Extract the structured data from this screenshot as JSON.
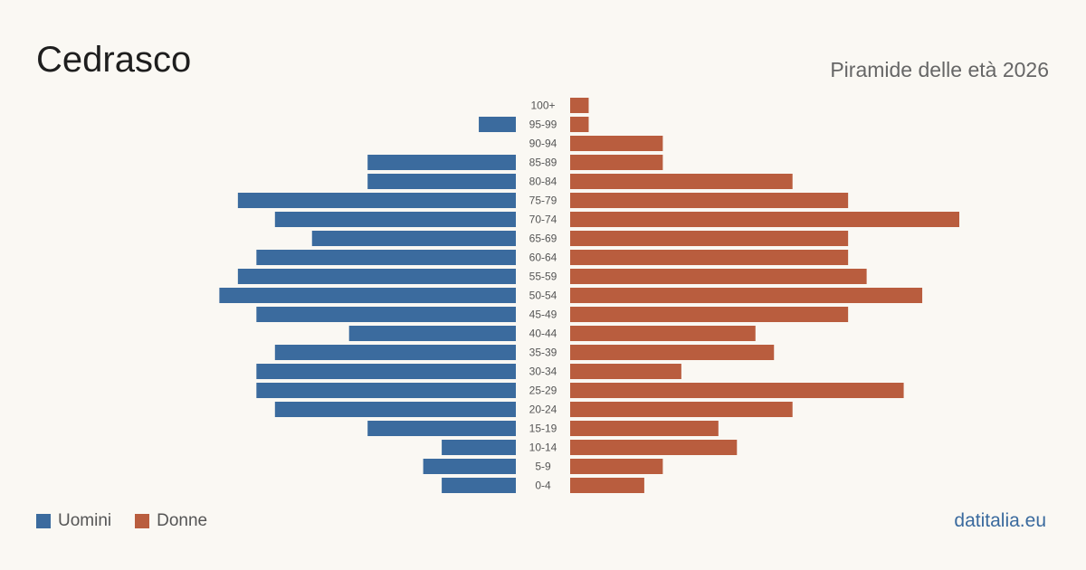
{
  "header": {
    "title": "Cedrasco",
    "subtitle": "Piramide delle età 2026"
  },
  "footer": {
    "source": "datitalia.eu"
  },
  "colors": {
    "men": "#3b6b9e",
    "women": "#b95d3e",
    "age_label": "#555555"
  },
  "chart_data": {
    "type": "bar",
    "orientation": "horizontal-pyramid",
    "categories": [
      "100+",
      "95-99",
      "90-94",
      "85-89",
      "80-84",
      "75-79",
      "70-74",
      "65-69",
      "60-64",
      "55-59",
      "50-54",
      "45-49",
      "40-44",
      "35-39",
      "30-34",
      "25-29",
      "20-24",
      "15-19",
      "10-14",
      "5-9",
      "0-4"
    ],
    "series": [
      {
        "name": "Uomini",
        "values": [
          0,
          2,
          0,
          8,
          8,
          15,
          13,
          11,
          14,
          15,
          16,
          14,
          9,
          13,
          14,
          14,
          13,
          8,
          4,
          5,
          4
        ]
      },
      {
        "name": "Donne",
        "values": [
          1,
          1,
          5,
          5,
          12,
          15,
          21,
          15,
          15,
          16,
          19,
          15,
          10,
          11,
          6,
          18,
          12,
          8,
          9,
          5,
          4
        ]
      }
    ],
    "legend": "bottom-left",
    "grid": false
  }
}
